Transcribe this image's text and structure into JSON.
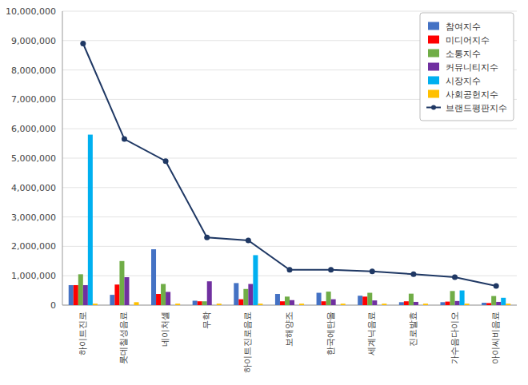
{
  "chart_data": {
    "type": "bar",
    "categories": [
      "하이트진로",
      "롯데칠성음료",
      "네이처셀",
      "무학",
      "하이트진로음료",
      "보해양조",
      "한국에탄올",
      "세계닉음료",
      "진로발효",
      "가수음다이오",
      "아이씨비음료"
    ],
    "series": [
      {
        "name": "참여지수",
        "color": "#4472C4",
        "values": [
          680000,
          350000,
          1900000,
          150000,
          750000,
          380000,
          420000,
          320000,
          100000,
          100000,
          80000
        ]
      },
      {
        "name": "미디어지수",
        "color": "#FF0000",
        "values": [
          680000,
          700000,
          380000,
          130000,
          200000,
          130000,
          130000,
          290000,
          130000,
          120000,
          70000
        ]
      },
      {
        "name": "소통지수",
        "color": "#70AD47",
        "values": [
          1050000,
          1500000,
          720000,
          130000,
          550000,
          290000,
          460000,
          420000,
          390000,
          480000,
          310000
        ]
      },
      {
        "name": "커뮤니티지수",
        "color": "#7030A0",
        "values": [
          680000,
          950000,
          450000,
          810000,
          720000,
          170000,
          200000,
          160000,
          110000,
          140000,
          110000
        ]
      },
      {
        "name": "시장지수",
        "color": "#00B0F0",
        "values": [
          5800000,
          0,
          0,
          0,
          1700000,
          0,
          0,
          0,
          0,
          500000,
          250000
        ]
      },
      {
        "name": "사회공헌지수",
        "color": "#FFC000",
        "values": [
          50000,
          100000,
          50000,
          50000,
          50000,
          50000,
          50000,
          50000,
          50000,
          50000,
          50000
        ]
      },
      {
        "name": "브랜드평판지수",
        "color": "#1F3864",
        "type": "line",
        "marker": "circle",
        "values": [
          8900000,
          5650000,
          4900000,
          2300000,
          2200000,
          1200000,
          1200000,
          1150000,
          1050000,
          950000,
          650000
        ]
      }
    ],
    "ylim": [
      0,
      10000000
    ],
    "yticks": [
      0,
      {
        "value": 1000000,
        "label": "1,000,000"
      },
      {
        "value": 2000000,
        "label": "2,000,000"
      },
      {
        "value": 3000000,
        "label": "3,000,000"
      },
      {
        "value": 4000000,
        "label": "4,000,000"
      },
      {
        "value": 5000000,
        "label": "5,000,000"
      },
      {
        "value": 6000000,
        "label": "6,000,000"
      },
      {
        "value": 7000000,
        "label": "7,000,000"
      },
      {
        "value": 8000000,
        "label": "8,000,000"
      },
      {
        "value": 9000000,
        "label": "9,000,000"
      },
      {
        "value": 10000000,
        "label": "10,000,000"
      }
    ],
    "grid": true,
    "legend": "upper right"
  }
}
